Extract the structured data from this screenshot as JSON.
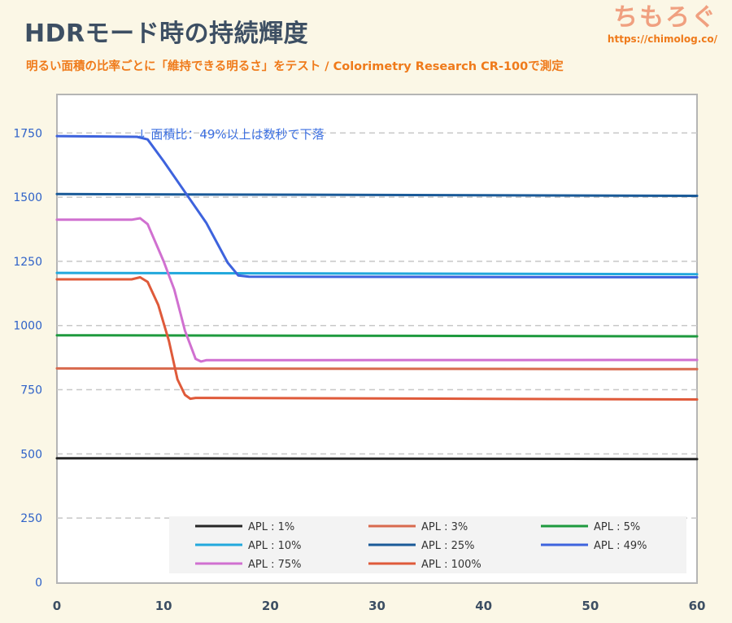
{
  "header": {
    "title": "HDRモード時の持続輝度",
    "subtitle": "明るい面積の比率ごとに「維持できる明るさ」をテスト / Colorimetry Research CR-100で測定",
    "brand_name": "ちもろぐ",
    "brand_url": "https://chimolog.co/"
  },
  "chart_data": {
    "type": "line",
    "title": "HDRモード時の持続輝度",
    "xlabel": "",
    "ylabel": "",
    "xlim": [
      0,
      60
    ],
    "ylim": [
      0,
      1900
    ],
    "xticks": [
      0,
      10,
      20,
      30,
      40,
      50,
      60
    ],
    "yticks": [
      0,
      250,
      500,
      750,
      1000,
      1250,
      1500,
      1750
    ],
    "grid": "horizontal-dashed",
    "legend_position": "bottom-inside",
    "annotation": "↓ 面積比：49%以上は数秒で下落",
    "series": [
      {
        "name": "APL : 1%",
        "color": "#262626",
        "points": [
          [
            0,
            483
          ],
          [
            60,
            480
          ]
        ]
      },
      {
        "name": "APL : 3%",
        "color": "#d86a4e",
        "points": [
          [
            0,
            833
          ],
          [
            60,
            830
          ]
        ]
      },
      {
        "name": "APL : 5%",
        "color": "#1e9a3e",
        "points": [
          [
            0,
            962
          ],
          [
            60,
            958
          ]
        ]
      },
      {
        "name": "APL : 10%",
        "color": "#22a8dc",
        "points": [
          [
            0,
            1205
          ],
          [
            60,
            1200
          ]
        ]
      },
      {
        "name": "APL : 25%",
        "color": "#1a5a98",
        "points": [
          [
            0,
            1512
          ],
          [
            60,
            1505
          ]
        ]
      },
      {
        "name": "APL : 49%",
        "color": "#3e63dd",
        "points": [
          [
            0,
            1738
          ],
          [
            7.5,
            1735
          ],
          [
            8.5,
            1725
          ],
          [
            10,
            1640
          ],
          [
            12,
            1520
          ],
          [
            14,
            1400
          ],
          [
            16,
            1245
          ],
          [
            17,
            1195
          ],
          [
            18,
            1190
          ],
          [
            60,
            1188
          ]
        ]
      },
      {
        "name": "APL : 75%",
        "color": "#d070d0",
        "points": [
          [
            0,
            1412
          ],
          [
            7,
            1412
          ],
          [
            7.8,
            1418
          ],
          [
            8.5,
            1395
          ],
          [
            10,
            1250
          ],
          [
            11,
            1140
          ],
          [
            12,
            980
          ],
          [
            13,
            870
          ],
          [
            13.5,
            860
          ],
          [
            14,
            865
          ],
          [
            60,
            866
          ]
        ]
      },
      {
        "name": "APL : 100%",
        "color": "#df5a3a",
        "points": [
          [
            0,
            1180
          ],
          [
            7,
            1180
          ],
          [
            7.8,
            1188
          ],
          [
            8.5,
            1170
          ],
          [
            9.5,
            1080
          ],
          [
            10.5,
            940
          ],
          [
            11.3,
            790
          ],
          [
            12,
            730
          ],
          [
            12.5,
            715
          ],
          [
            13,
            718
          ],
          [
            60,
            712
          ]
        ]
      }
    ]
  }
}
